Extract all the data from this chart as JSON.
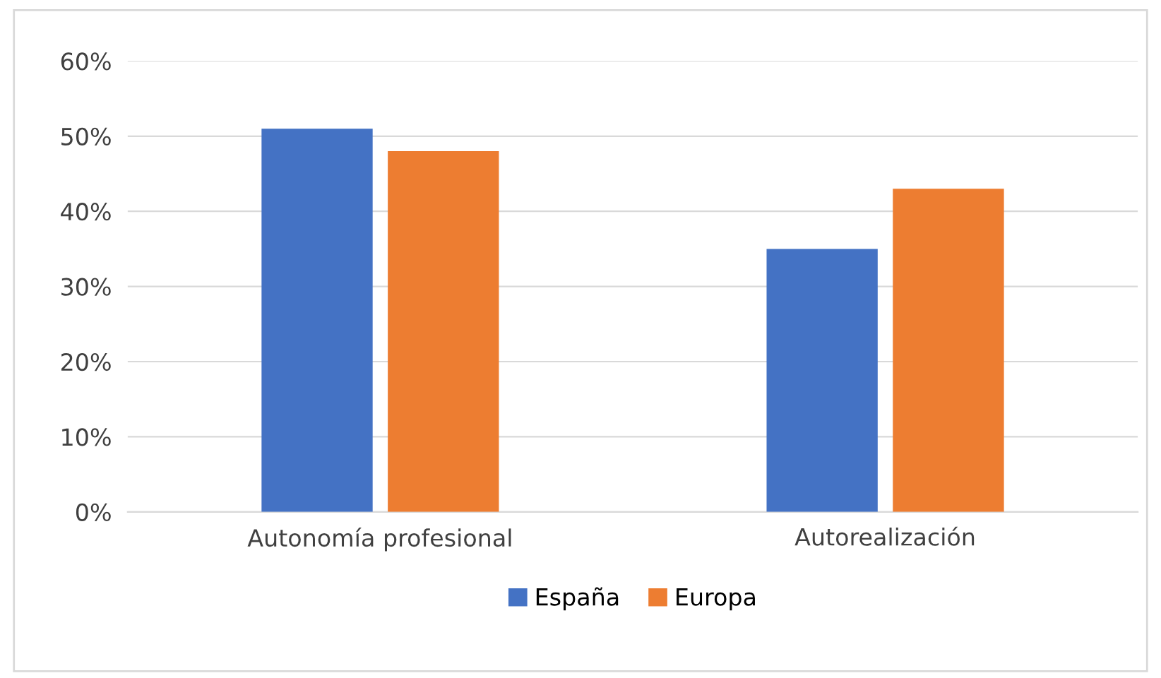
{
  "chart_data": {
    "type": "bar",
    "categories": [
      "Autonomía profesional",
      "Autorealización"
    ],
    "series": [
      {
        "name": "España",
        "color": "#4472c4",
        "values": [
          51,
          35
        ]
      },
      {
        "name": "Europa",
        "color": "#ed7d31",
        "values": [
          48,
          43
        ]
      }
    ],
    "ylim": [
      0,
      60
    ],
    "yticks": [
      {
        "value": 0,
        "label": "0%"
      },
      {
        "value": 10,
        "label": "10%"
      },
      {
        "value": 20,
        "label": "20%"
      },
      {
        "value": 30,
        "label": "30%"
      },
      {
        "value": 40,
        "label": "40%"
      },
      {
        "value": 50,
        "label": "50%"
      },
      {
        "value": 60,
        "label": "60%"
      }
    ],
    "grid": "y",
    "legend": "bottom"
  }
}
